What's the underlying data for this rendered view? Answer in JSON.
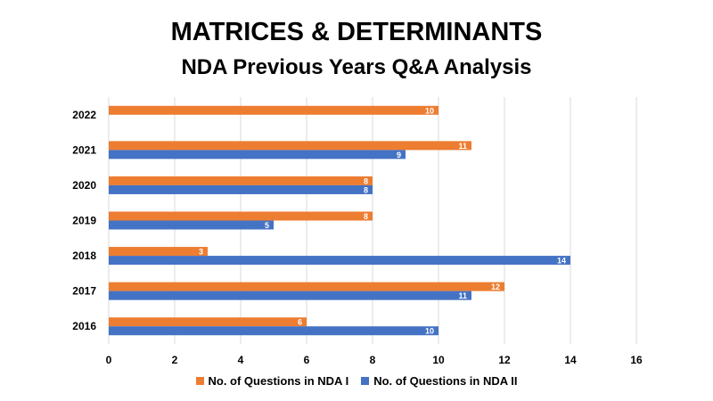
{
  "colors": {
    "nda1": "#ED7D31",
    "nda2": "#4472C4",
    "grid": "#D9D9D9"
  },
  "chart_data": {
    "type": "bar",
    "orientation": "horizontal",
    "title": "MATRICES & DETERMINANTS",
    "subtitle": "NDA Previous Years Q&A Analysis",
    "categories": [
      "2022",
      "2021",
      "2020",
      "2019",
      "2018",
      "2017",
      "2016"
    ],
    "series": [
      {
        "name": "No. of Questions in NDA I",
        "values": [
          10,
          11,
          8,
          8,
          3,
          12,
          6
        ]
      },
      {
        "name": "No. of Questions in NDA II",
        "values": [
          null,
          9,
          8,
          5,
          14,
          11,
          10
        ]
      }
    ],
    "xlim": [
      0,
      16
    ],
    "xticks": [
      "0",
      "2",
      "4",
      "6",
      "8",
      "10",
      "12",
      "14",
      "16"
    ],
    "grid": "vertical",
    "legend": "bottom"
  }
}
